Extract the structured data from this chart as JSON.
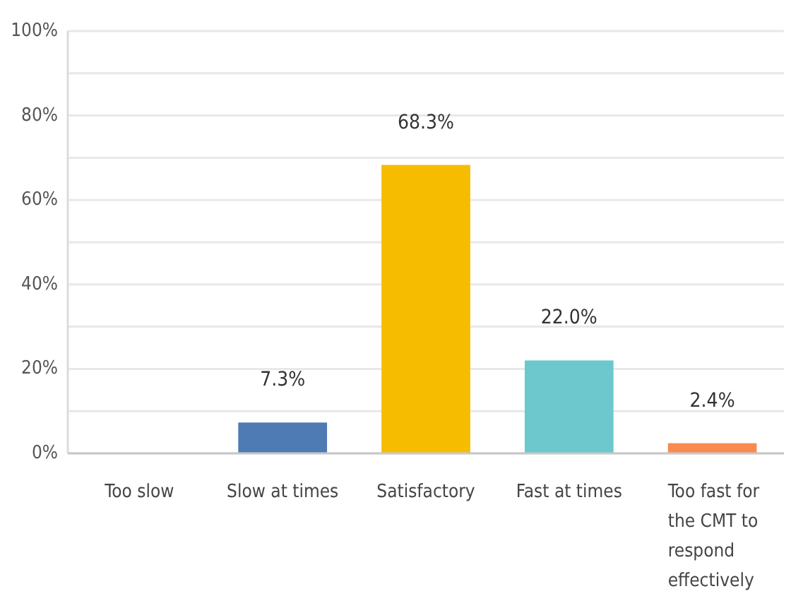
{
  "chart_data": {
    "type": "bar",
    "categories": [
      "Too slow",
      "Slow at times",
      "Satisfactory",
      "Fast at times",
      "Too fast for the CMT to respond effectively"
    ],
    "values": [
      0,
      7.3,
      68.3,
      22.0,
      2.4
    ],
    "colors": [
      "#4e7bb4",
      "#4e7bb4",
      "#f6bd00",
      "#6cc8cc",
      "#fa8a50"
    ],
    "value_labels": [
      null,
      "7.3%",
      "68.3%",
      "22.0%",
      "2.4%"
    ],
    "ylim": [
      0,
      100
    ],
    "yticks": [
      {
        "value": 0,
        "label": "0%"
      },
      {
        "value": 10,
        "label": null
      },
      {
        "value": 20,
        "label": "20%"
      },
      {
        "value": 30,
        "label": null
      },
      {
        "value": 40,
        "label": "40%"
      },
      {
        "value": 50,
        "label": null
      },
      {
        "value": 60,
        "label": "60%"
      },
      {
        "value": 70,
        "label": null
      },
      {
        "value": 80,
        "label": "80%"
      },
      {
        "value": 90,
        "label": null
      },
      {
        "value": 100,
        "label": "100%"
      }
    ],
    "grid": "y"
  }
}
